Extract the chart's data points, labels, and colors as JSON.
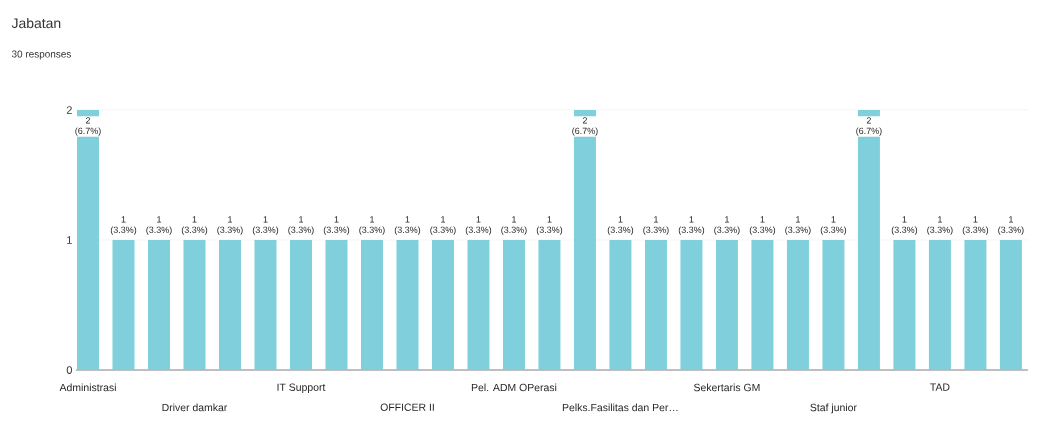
{
  "chart_data": {
    "type": "bar",
    "title": "Jabatan",
    "subtitle": "30 responses",
    "categories": [
      "Administrasi",
      null,
      null,
      "Driver damkar",
      null,
      null,
      "IT Support",
      null,
      null,
      "OFFICER II",
      null,
      null,
      "Pel. ADM OPerasi",
      null,
      null,
      "Pelks.Fasilitas dan Per…",
      null,
      null,
      "Sekertaris GM",
      null,
      null,
      "Staf junior",
      null,
      null,
      "TAD",
      null,
      null
    ],
    "values": [
      2,
      1,
      1,
      1,
      1,
      1,
      1,
      1,
      1,
      1,
      1,
      1,
      1,
      1,
      2,
      1,
      1,
      1,
      1,
      1,
      1,
      1,
      2,
      1,
      1,
      1,
      1
    ],
    "value_labels": [
      "2 (6.7%)",
      "1 (3.3%)",
      "1 (3.3%)",
      "1 (3.3%)",
      "1 (3.3%)",
      "1 (3.3%)",
      "1 (3.3%)",
      "1 (3.3%)",
      "1 (3.3%)",
      "1 (3.3%)",
      "1 (3.3%)",
      "1 (3.3%)",
      "1 (3.3%)",
      "1 (3.3%)",
      "2 (6.7%)",
      "1 (3.3%)",
      "1 (3.3%)",
      "1 (3.3%)",
      "1 (3.3%)",
      "1 (3.3%)",
      "1 (3.3%)",
      "1 (3.3%)",
      "2 (6.7%)",
      "1 (3.3%)",
      "1 (3.3%)",
      "1 (3.3%)",
      "1 (3.3%)"
    ],
    "color": "#7fd0dc",
    "ylim": [
      0,
      2
    ],
    "yticks": [
      0,
      1,
      2
    ],
    "grid": "y"
  }
}
